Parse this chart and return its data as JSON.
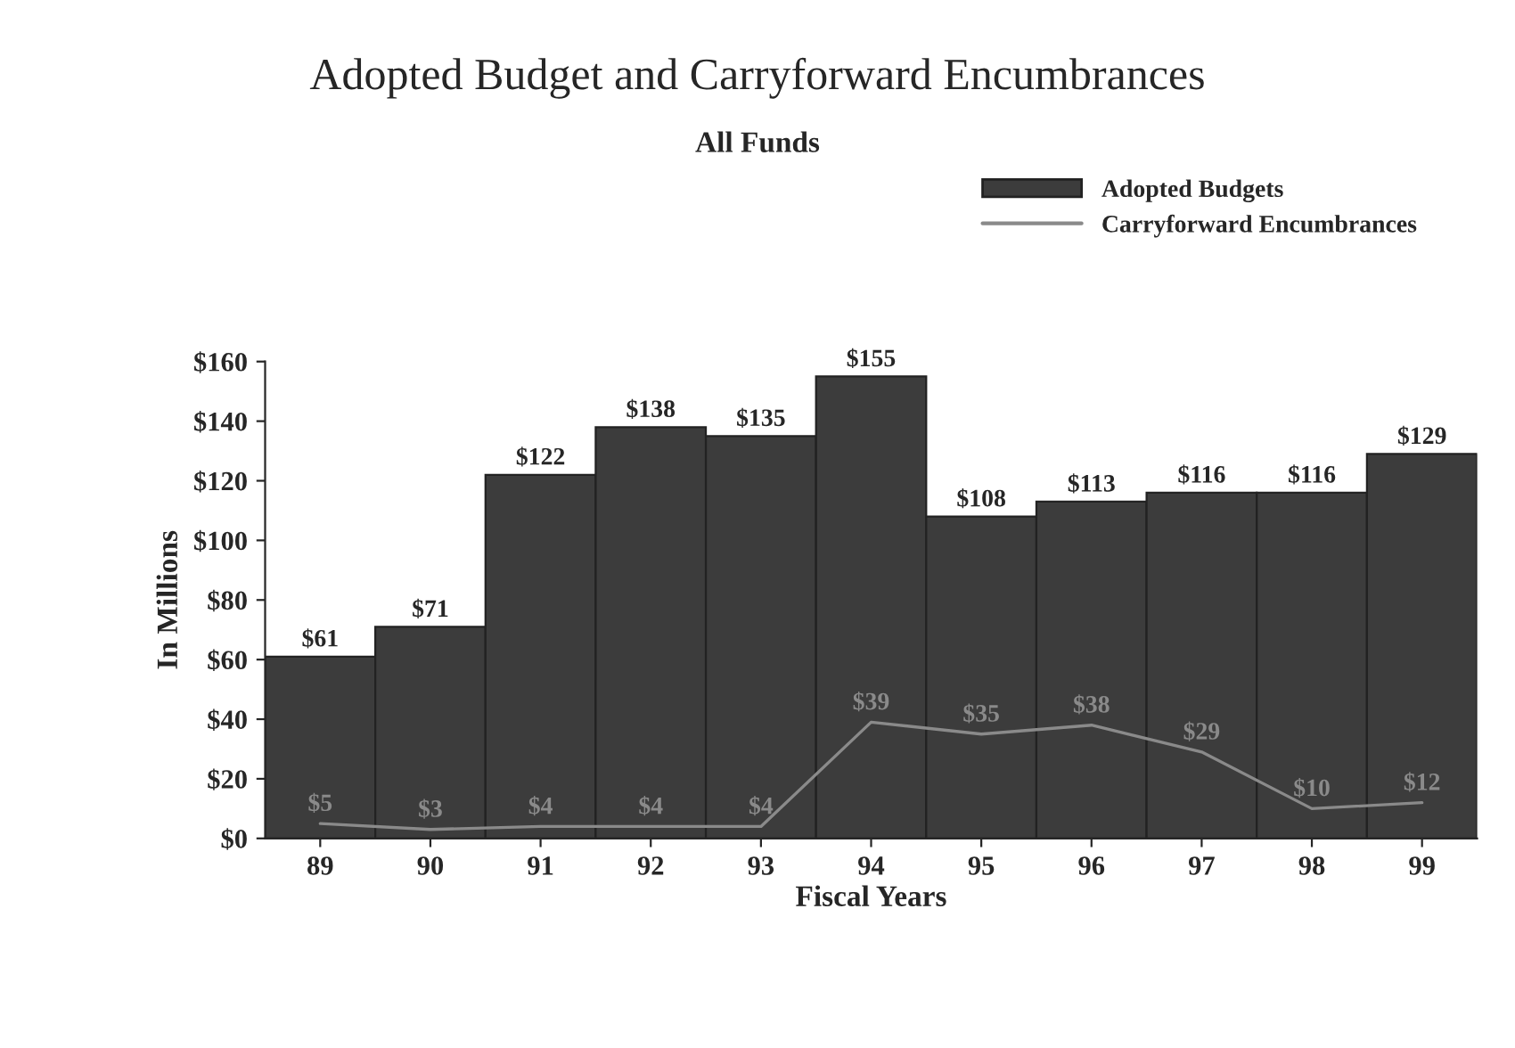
{
  "chart_data": {
    "type": "bar",
    "title": "Adopted Budget and Carryforward Encumbrances",
    "subtitle": "All Funds",
    "xlabel": "Fiscal Years",
    "ylabel": "In Millions",
    "categories": [
      "89",
      "90",
      "91",
      "92",
      "93",
      "94",
      "95",
      "96",
      "97",
      "98",
      "99"
    ],
    "series": [
      {
        "name": "Adopted Budgets",
        "color": "#3c3c3c",
        "values": [
          61,
          71,
          122,
          138,
          135,
          155,
          108,
          113,
          116,
          116,
          129
        ],
        "value_labels": [
          "$61",
          "$71",
          "$122",
          "$138",
          "$135",
          "$155",
          "$108",
          "$113",
          "$116",
          "$116",
          "$129"
        ]
      },
      {
        "name": "Carryforward Encumbrances",
        "type": "line",
        "color": "#8a8a8a",
        "values": [
          5,
          3,
          4,
          4,
          4,
          39,
          35,
          38,
          29,
          10,
          12
        ],
        "value_labels": [
          "$5",
          "$3",
          "$4",
          "$4",
          "$4",
          "$39",
          "$35",
          "$38",
          "$29",
          "$10",
          "$12"
        ]
      }
    ],
    "ylim": [
      0,
      160
    ],
    "yticks": [
      {
        "value": 0,
        "label": "$0"
      },
      {
        "value": 20,
        "label": "$20"
      },
      {
        "value": 40,
        "label": "$40"
      },
      {
        "value": 60,
        "label": "$60"
      },
      {
        "value": 80,
        "label": "$80"
      },
      {
        "value": 100,
        "label": "$100"
      },
      {
        "value": 120,
        "label": "$120"
      },
      {
        "value": 140,
        "label": "$140"
      },
      {
        "value": 160,
        "label": "$160"
      }
    ],
    "grid": false,
    "legend": "top right",
    "marker": "none",
    "line_style": "solid"
  }
}
